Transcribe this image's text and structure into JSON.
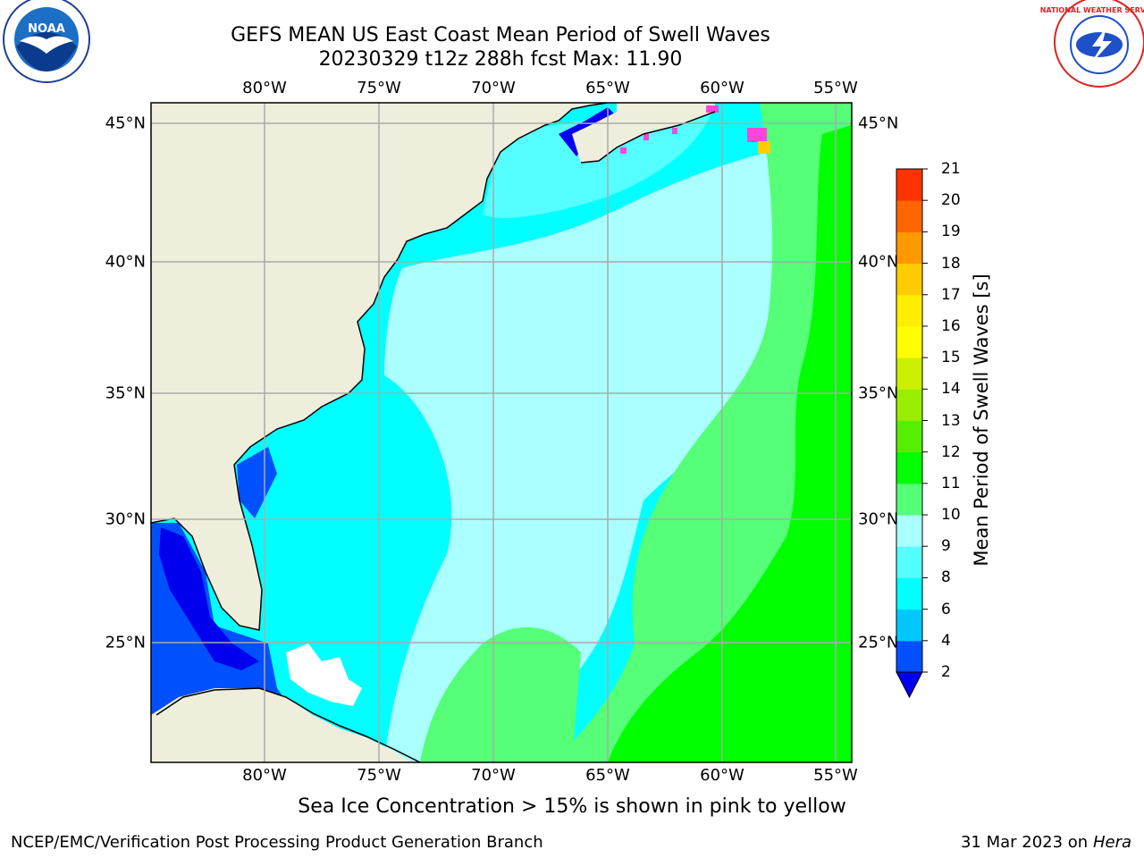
{
  "title_line1": "GEFS MEAN US East Coast Mean Period of Swell Waves",
  "title_line2": "20230329 t12z 288h fcst   Max: 11.90",
  "caption": "Sea Ice Concentration > 15% is shown in pink to yellow",
  "footer_left": "NCEP/EMC/Verification Post Processing Product Generation Branch",
  "footer_right_date": "31 Mar 2023 on",
  "footer_right_host": "Hera",
  "noaa_logo_text": "NOAA",
  "nws_logo_text": "NATIONAL WEATHER SERVICE",
  "colorbar": {
    "label": "Mean Period of Swell Waves [s]",
    "ticks": [
      "2",
      "4",
      "6",
      "8",
      "9",
      "10",
      "11",
      "12",
      "13",
      "14",
      "15",
      "16",
      "17",
      "18",
      "19",
      "20",
      "21"
    ],
    "colors": [
      "#0050ff",
      "#00c8ff",
      "#00ffff",
      "#55ffff",
      "#aaffff",
      "#55ff77",
      "#00ff00",
      "#55ee00",
      "#99ee00",
      "#ccee00",
      "#ffff00",
      "#ffee00",
      "#ffcc00",
      "#ff9900",
      "#ff6600",
      "#ff3300",
      "#ff0000"
    ],
    "under_color": "#0000ee"
  },
  "map": {
    "lon_labels": [
      "80°W",
      "75°W",
      "70°W",
      "65°W",
      "60°W",
      "55°W"
    ],
    "lat_labels": [
      "45°N",
      "40°N",
      "35°N",
      "30°N",
      "25°N"
    ],
    "colors": {
      "land": "#efeedd",
      "grid": "#aaaaaa",
      "deep_blue": "#0000ee",
      "blue": "#0050ff",
      "cyan": "#00ffff",
      "cyan_light": "#55ffff",
      "pale": "#aaffff",
      "light_green": "#55ff77",
      "green": "#00ff00",
      "ice": "#ff44dd"
    }
  }
}
